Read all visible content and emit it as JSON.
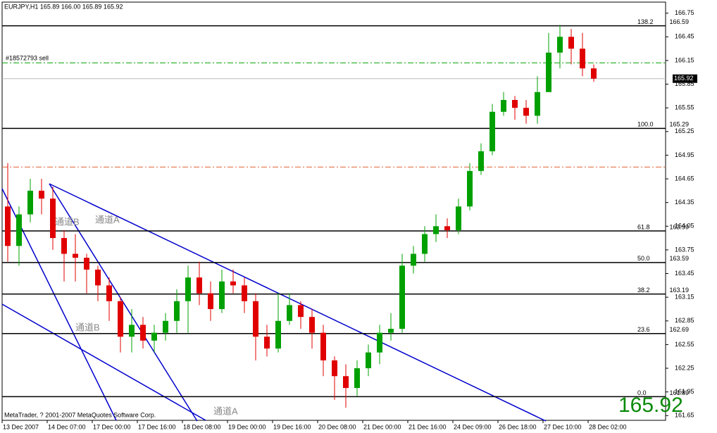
{
  "chart_data": {
    "type": "candlestick",
    "header": "EURJPY,H1  165.89 166.00 165.89 165.92",
    "footer": "MetaTrader, ? 2001-2007 MetaQuotes Software Corp.",
    "categories": [
      "13 Dec 2007",
      null,
      null,
      null,
      "14 Dec 07:00",
      null,
      null,
      null,
      "17 Dec 00:00",
      null,
      null,
      null,
      "17 Dec 16:00",
      null,
      null,
      null,
      "18 Dec 08:00",
      null,
      null,
      null,
      "19 Dec 00:00",
      null,
      null,
      null,
      "19 Dec 16:00",
      null,
      null,
      null,
      "20 Dec 08:00",
      null,
      null,
      null,
      "21 Dec 00:00",
      null,
      null,
      null,
      "21 Dec 16:00",
      null,
      null,
      null,
      "24 Dec 09:00",
      null,
      null,
      null,
      "26 Dec 18:00",
      null,
      null,
      null,
      "27 Dec 10:00",
      null,
      null,
      null,
      "28 Dec 02:00"
    ],
    "open": [
      164.3,
      163.8,
      164.2,
      164.5,
      164.4,
      163.9,
      163.7,
      163.65,
      163.5,
      163.3,
      163.1,
      162.65,
      162.8,
      162.6,
      162.7,
      162.85,
      163.1,
      163.4,
      163.2,
      163.0,
      163.35,
      163.3,
      163.1,
      162.65,
      162.5,
      162.85,
      163.05,
      162.9,
      162.7,
      162.35,
      162.15,
      162.0,
      162.25,
      162.45,
      162.7,
      162.75,
      163.55,
      163.7,
      163.95,
      164.05,
      164.0,
      164.3,
      164.75,
      165.0,
      165.5,
      165.65,
      165.55,
      165.45,
      165.75,
      166.25,
      166.45,
      166.3,
      166.05
    ],
    "high": [
      164.85,
      164.3,
      164.65,
      164.65,
      164.55,
      164.0,
      163.95,
      163.7,
      163.55,
      163.4,
      163.15,
      163.0,
      162.9,
      162.8,
      162.95,
      163.25,
      163.55,
      163.6,
      163.35,
      163.5,
      163.5,
      163.4,
      163.2,
      162.8,
      163.2,
      163.2,
      163.1,
      163.0,
      162.8,
      162.4,
      162.3,
      162.35,
      162.55,
      162.8,
      162.95,
      163.7,
      163.8,
      164.05,
      164.2,
      164.15,
      164.4,
      164.85,
      165.1,
      165.6,
      165.75,
      165.7,
      165.65,
      165.95,
      166.5,
      166.6,
      166.55,
      166.5,
      166.1
    ],
    "low": [
      163.6,
      163.55,
      164.1,
      164.2,
      163.75,
      163.35,
      163.35,
      163.2,
      163.1,
      162.85,
      162.45,
      162.45,
      162.5,
      162.45,
      162.6,
      162.7,
      162.7,
      163.05,
      162.85,
      162.95,
      163.2,
      162.95,
      162.35,
      162.4,
      162.45,
      162.8,
      162.75,
      162.5,
      162.15,
      161.85,
      161.75,
      161.9,
      162.15,
      162.3,
      162.6,
      162.7,
      163.45,
      163.6,
      163.85,
      163.9,
      163.95,
      164.25,
      164.7,
      164.95,
      165.45,
      165.4,
      165.35,
      165.35,
      165.75,
      166.05,
      166.1,
      165.95,
      165.88
    ],
    "close": [
      163.8,
      164.2,
      164.5,
      164.4,
      163.9,
      163.7,
      163.65,
      163.5,
      163.3,
      163.1,
      162.65,
      162.8,
      162.6,
      162.7,
      162.85,
      163.1,
      163.4,
      163.2,
      163.0,
      163.35,
      163.3,
      163.1,
      162.65,
      162.5,
      162.85,
      163.05,
      162.9,
      162.7,
      162.35,
      162.15,
      162.0,
      162.25,
      162.45,
      162.7,
      162.75,
      163.55,
      163.7,
      163.95,
      164.05,
      164.0,
      164.3,
      164.75,
      165.0,
      165.5,
      165.65,
      165.55,
      165.45,
      165.75,
      166.25,
      166.45,
      166.3,
      166.05,
      165.92
    ],
    "up_color": "#00a000",
    "down_color": "#e00000",
    "ylim": [
      161.59,
      166.89
    ],
    "yticks": [
      166.75,
      166.45,
      166.15,
      165.85,
      165.55,
      165.25,
      164.95,
      164.65,
      164.35,
      164.05,
      163.75,
      163.45,
      163.15,
      162.85,
      162.55,
      162.25,
      161.95,
      161.65
    ],
    "fibonacci": [
      {
        "level": "138.2",
        "price": 166.59
      },
      {
        "level": "100.0",
        "price": 165.29
      },
      {
        "level": "61.8",
        "price": 163.99
      },
      {
        "level": "50.0",
        "price": 163.59
      },
      {
        "level": "38.2",
        "price": 163.19
      },
      {
        "level": "23.6",
        "price": 162.69
      },
      {
        "level": "0.0",
        "price": 161.89
      }
    ],
    "order_line": {
      "label": "#18572793 sell",
      "price": 166.12,
      "color": "#00a000"
    },
    "stop_line": {
      "price": 164.8,
      "color": "#e06030"
    },
    "current_price": 165.92,
    "channel_labels": [
      "通道B",
      "通道A",
      "通道B",
      "通道A"
    ]
  }
}
